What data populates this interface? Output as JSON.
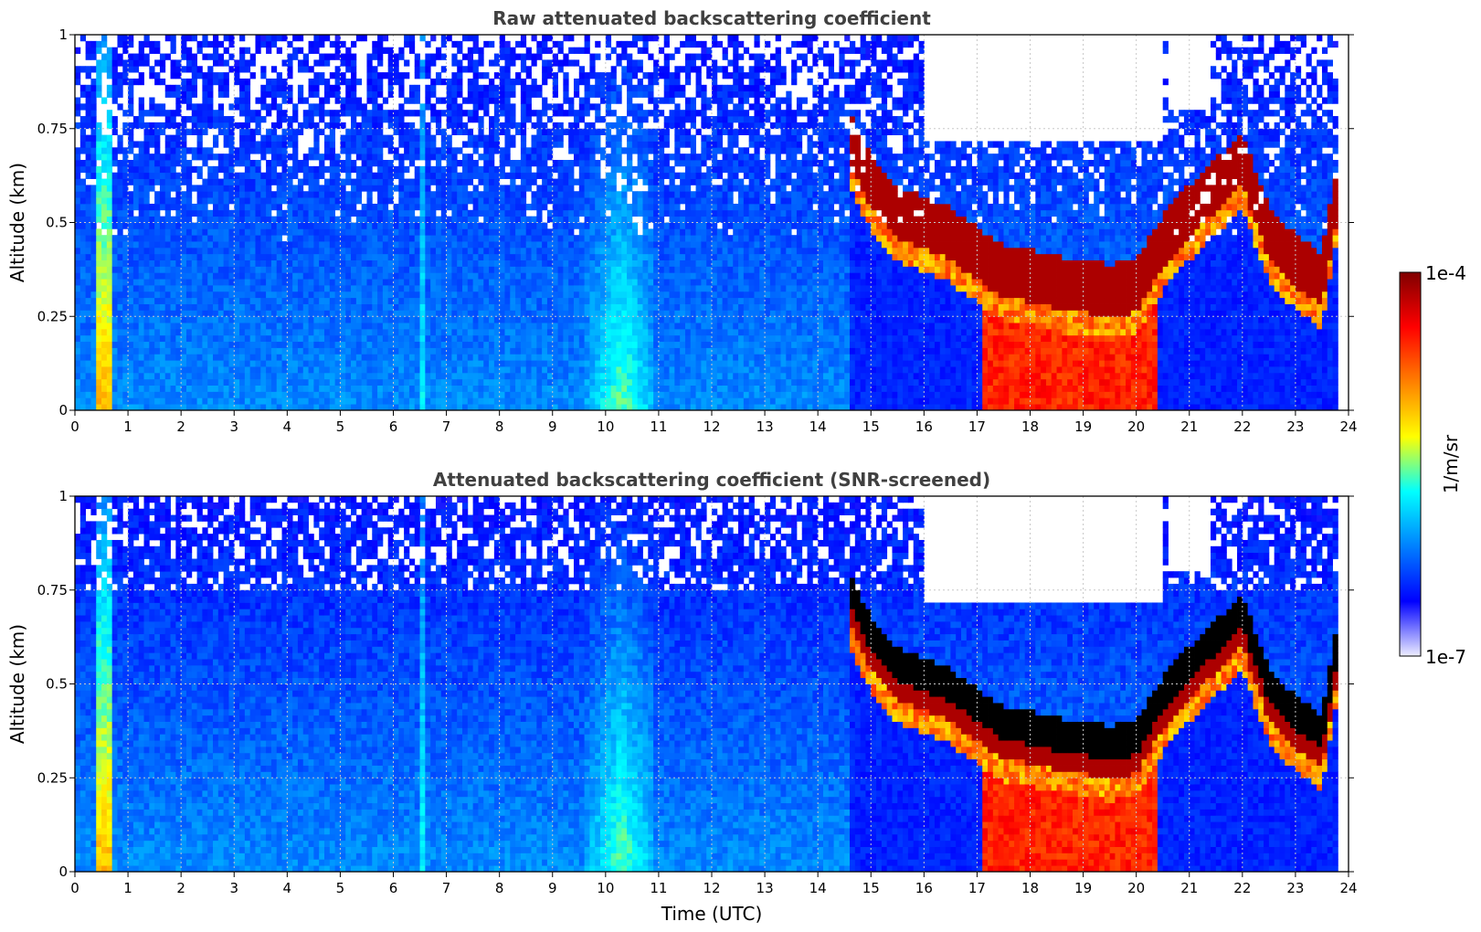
{
  "chart_data": [
    {
      "type": "heatmap",
      "title": "Raw attenuated backscattering coefficient",
      "xlabel": "",
      "ylabel": "Altitude (km)",
      "xlim": [
        0,
        24
      ],
      "ylim": [
        0,
        1
      ],
      "x_ticks": [
        "0",
        "1",
        "2",
        "3",
        "4",
        "5",
        "6",
        "7",
        "8",
        "9",
        "10",
        "11",
        "12",
        "13",
        "14",
        "15",
        "16",
        "17",
        "18",
        "19",
        "20",
        "21",
        "22",
        "23",
        "24"
      ],
      "y_ticks": [
        "0",
        "0.25",
        "0.5",
        "0.75",
        "1"
      ],
      "grid": true,
      "screened": false,
      "cloud_base_km": [
        [
          14.6,
          0.68
        ],
        [
          15.0,
          0.56
        ],
        [
          15.5,
          0.48
        ],
        [
          16.0,
          0.45
        ],
        [
          16.5,
          0.42
        ],
        [
          17.0,
          0.37
        ],
        [
          17.5,
          0.32
        ],
        [
          18.0,
          0.31
        ],
        [
          18.5,
          0.29
        ],
        [
          19.0,
          0.28
        ],
        [
          19.5,
          0.27
        ],
        [
          20.0,
          0.28
        ],
        [
          20.5,
          0.4
        ],
        [
          21.0,
          0.48
        ],
        [
          21.5,
          0.55
        ],
        [
          22.0,
          0.62
        ],
        [
          22.5,
          0.42
        ],
        [
          23.0,
          0.35
        ],
        [
          23.5,
          0.3
        ],
        [
          23.8,
          0.55
        ]
      ],
      "precipitation_hours": [
        [
          17.1,
          20.4
        ]
      ]
    },
    {
      "type": "heatmap",
      "title": "Attenuated backscattering coefficient (SNR-screened)",
      "xlabel": "Time (UTC)",
      "ylabel": "Altitude (km)",
      "xlim": [
        0,
        24
      ],
      "ylim": [
        0,
        1
      ],
      "x_ticks": [
        "0",
        "1",
        "2",
        "3",
        "4",
        "5",
        "6",
        "7",
        "8",
        "9",
        "10",
        "11",
        "12",
        "13",
        "14",
        "15",
        "16",
        "17",
        "18",
        "19",
        "20",
        "21",
        "22",
        "23",
        "24"
      ],
      "y_ticks": [
        "0",
        "0.25",
        "0.5",
        "0.75",
        "1"
      ],
      "grid": true,
      "screened": true,
      "cloud_base_km": [
        [
          14.6,
          0.68
        ],
        [
          15.0,
          0.56
        ],
        [
          15.5,
          0.48
        ],
        [
          16.0,
          0.45
        ],
        [
          16.5,
          0.42
        ],
        [
          17.0,
          0.37
        ],
        [
          17.5,
          0.32
        ],
        [
          18.0,
          0.31
        ],
        [
          18.5,
          0.29
        ],
        [
          19.0,
          0.28
        ],
        [
          19.5,
          0.27
        ],
        [
          20.0,
          0.28
        ],
        [
          20.5,
          0.4
        ],
        [
          21.0,
          0.48
        ],
        [
          21.5,
          0.55
        ],
        [
          22.0,
          0.62
        ],
        [
          22.5,
          0.42
        ],
        [
          23.0,
          0.35
        ],
        [
          23.5,
          0.3
        ],
        [
          23.8,
          0.55
        ]
      ],
      "precipitation_hours": [
        [
          17.1,
          20.4
        ]
      ]
    }
  ],
  "colorbar": {
    "label": "1/m/sr",
    "max_label": "1e-4",
    "min_label": "1e-7",
    "colors": [
      "#eeeeff",
      "#0000ff",
      "#0080ff",
      "#00ffff",
      "#ffff00",
      "#ff8000",
      "#ff0000",
      "#800000"
    ]
  }
}
